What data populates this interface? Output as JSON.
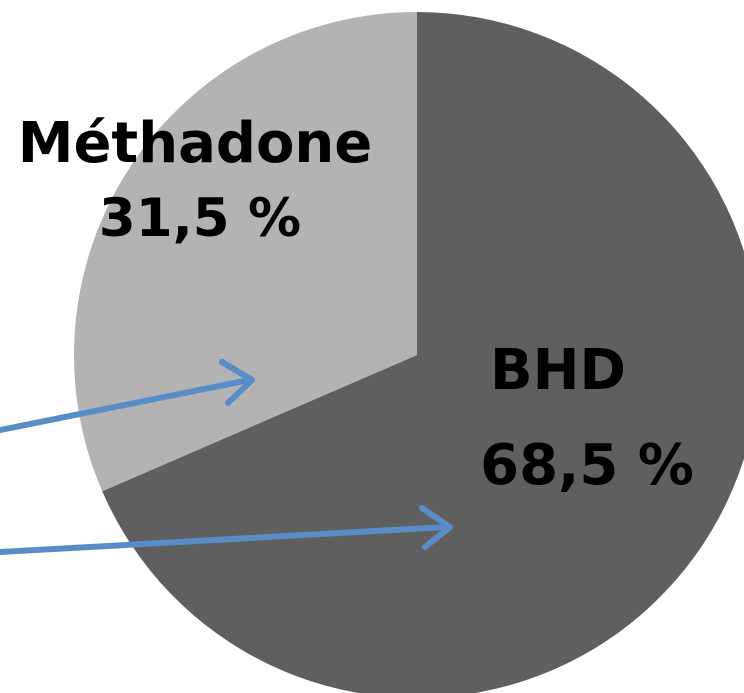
{
  "chart_data": {
    "type": "pie",
    "slices": [
      {
        "name": "BHD",
        "value": 68.5,
        "label": "BHD",
        "value_label": "68,5 %",
        "color": "#5f5f5f"
      },
      {
        "name": "Méthadone",
        "value": 31.5,
        "label": "Méthadone",
        "value_label": "31,5 %",
        "color": "#b3b3b3"
      }
    ],
    "start_angle": "12 o'clock",
    "direction": "clockwise",
    "legend": "none",
    "arrow_color": "#5a8cc8"
  }
}
